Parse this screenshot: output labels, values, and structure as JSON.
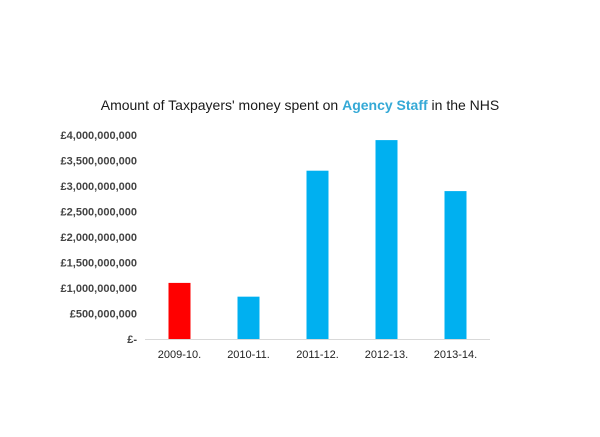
{
  "title": {
    "prefix": "Amount of Taxpayers' money spent on ",
    "highlight": "Agency Staff",
    "suffix": " in the NHS"
  },
  "colors": {
    "title_highlight": "#35A9D6",
    "bar_default": "#00B0F0",
    "bar_highlight": "#FF0000",
    "axis": "#D9D9D9"
  },
  "chart_data": {
    "type": "bar",
    "title": "Amount of Taxpayers' money spent on Agency Staff in the NHS",
    "xlabel": "",
    "ylabel": "",
    "categories": [
      "2009-10.",
      "2010-11.",
      "2011-12.",
      "2012-13.",
      "2013-14."
    ],
    "values": [
      1100000000,
      830000000,
      3300000000,
      3900000000,
      2900000000
    ],
    "bar_colors": [
      "#FF0000",
      "#00B0F0",
      "#00B0F0",
      "#00B0F0",
      "#00B0F0"
    ],
    "ylim": [
      0,
      4000000000
    ],
    "yticks": [
      0,
      500000000,
      1000000000,
      1500000000,
      2000000000,
      2500000000,
      3000000000,
      3500000000,
      4000000000
    ],
    "ytick_labels": [
      "£-",
      "£500,000,000",
      "£1,000,000,000",
      "£1,500,000,000",
      "£2,000,000,000",
      "£2,500,000,000",
      "£3,000,000,000",
      "£3,500,000,000",
      "£4,000,000,000"
    ],
    "grid": false,
    "legend": "none"
  }
}
